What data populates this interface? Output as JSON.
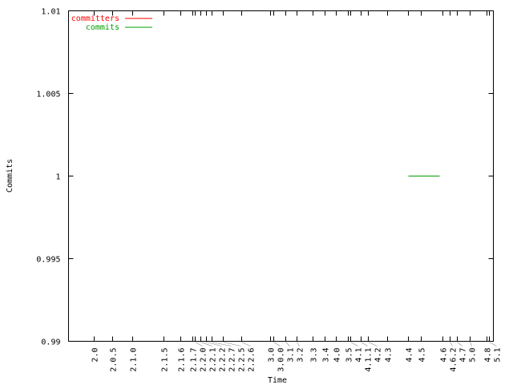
{
  "chart_data": {
    "type": "line",
    "title": "",
    "xlabel": "Time",
    "ylabel": "Commits",
    "ylim": [
      0.99,
      1.01
    ],
    "yticks": [
      "0.99",
      "0.995",
      "1",
      "1.005",
      "1.01"
    ],
    "ytick_values": [
      0.99,
      0.995,
      1,
      1.005,
      1.01
    ],
    "xtick_labels": [
      "2.0",
      "2.0.5",
      "2.1.0",
      "2.1.5",
      "2.1.6",
      "2.1.7",
      "2.2.0",
      "2.2.1",
      "2.2.2",
      "2.2.7",
      "2.2.5",
      "2.2.6",
      "3.0",
      "3.0.0",
      "3.1",
      "3.2",
      "3.3",
      "3.4",
      "4.0",
      "3.5",
      "4.1",
      "4.1.1",
      "4.2",
      "4.3",
      "4.4",
      "4.5",
      "4.6",
      "4.6.2",
      "4.7",
      "5.0",
      "4.8",
      "5.1"
    ],
    "grid": false,
    "legend_placement": "top-left",
    "series": [
      {
        "name": "committers",
        "color": "#ff0000",
        "points": []
      },
      {
        "name": "commits",
        "color": "#00a000",
        "points": [
          {
            "x": "4.4",
            "y": 1
          },
          {
            "x": "4.6",
            "y": 1
          }
        ]
      }
    ]
  }
}
